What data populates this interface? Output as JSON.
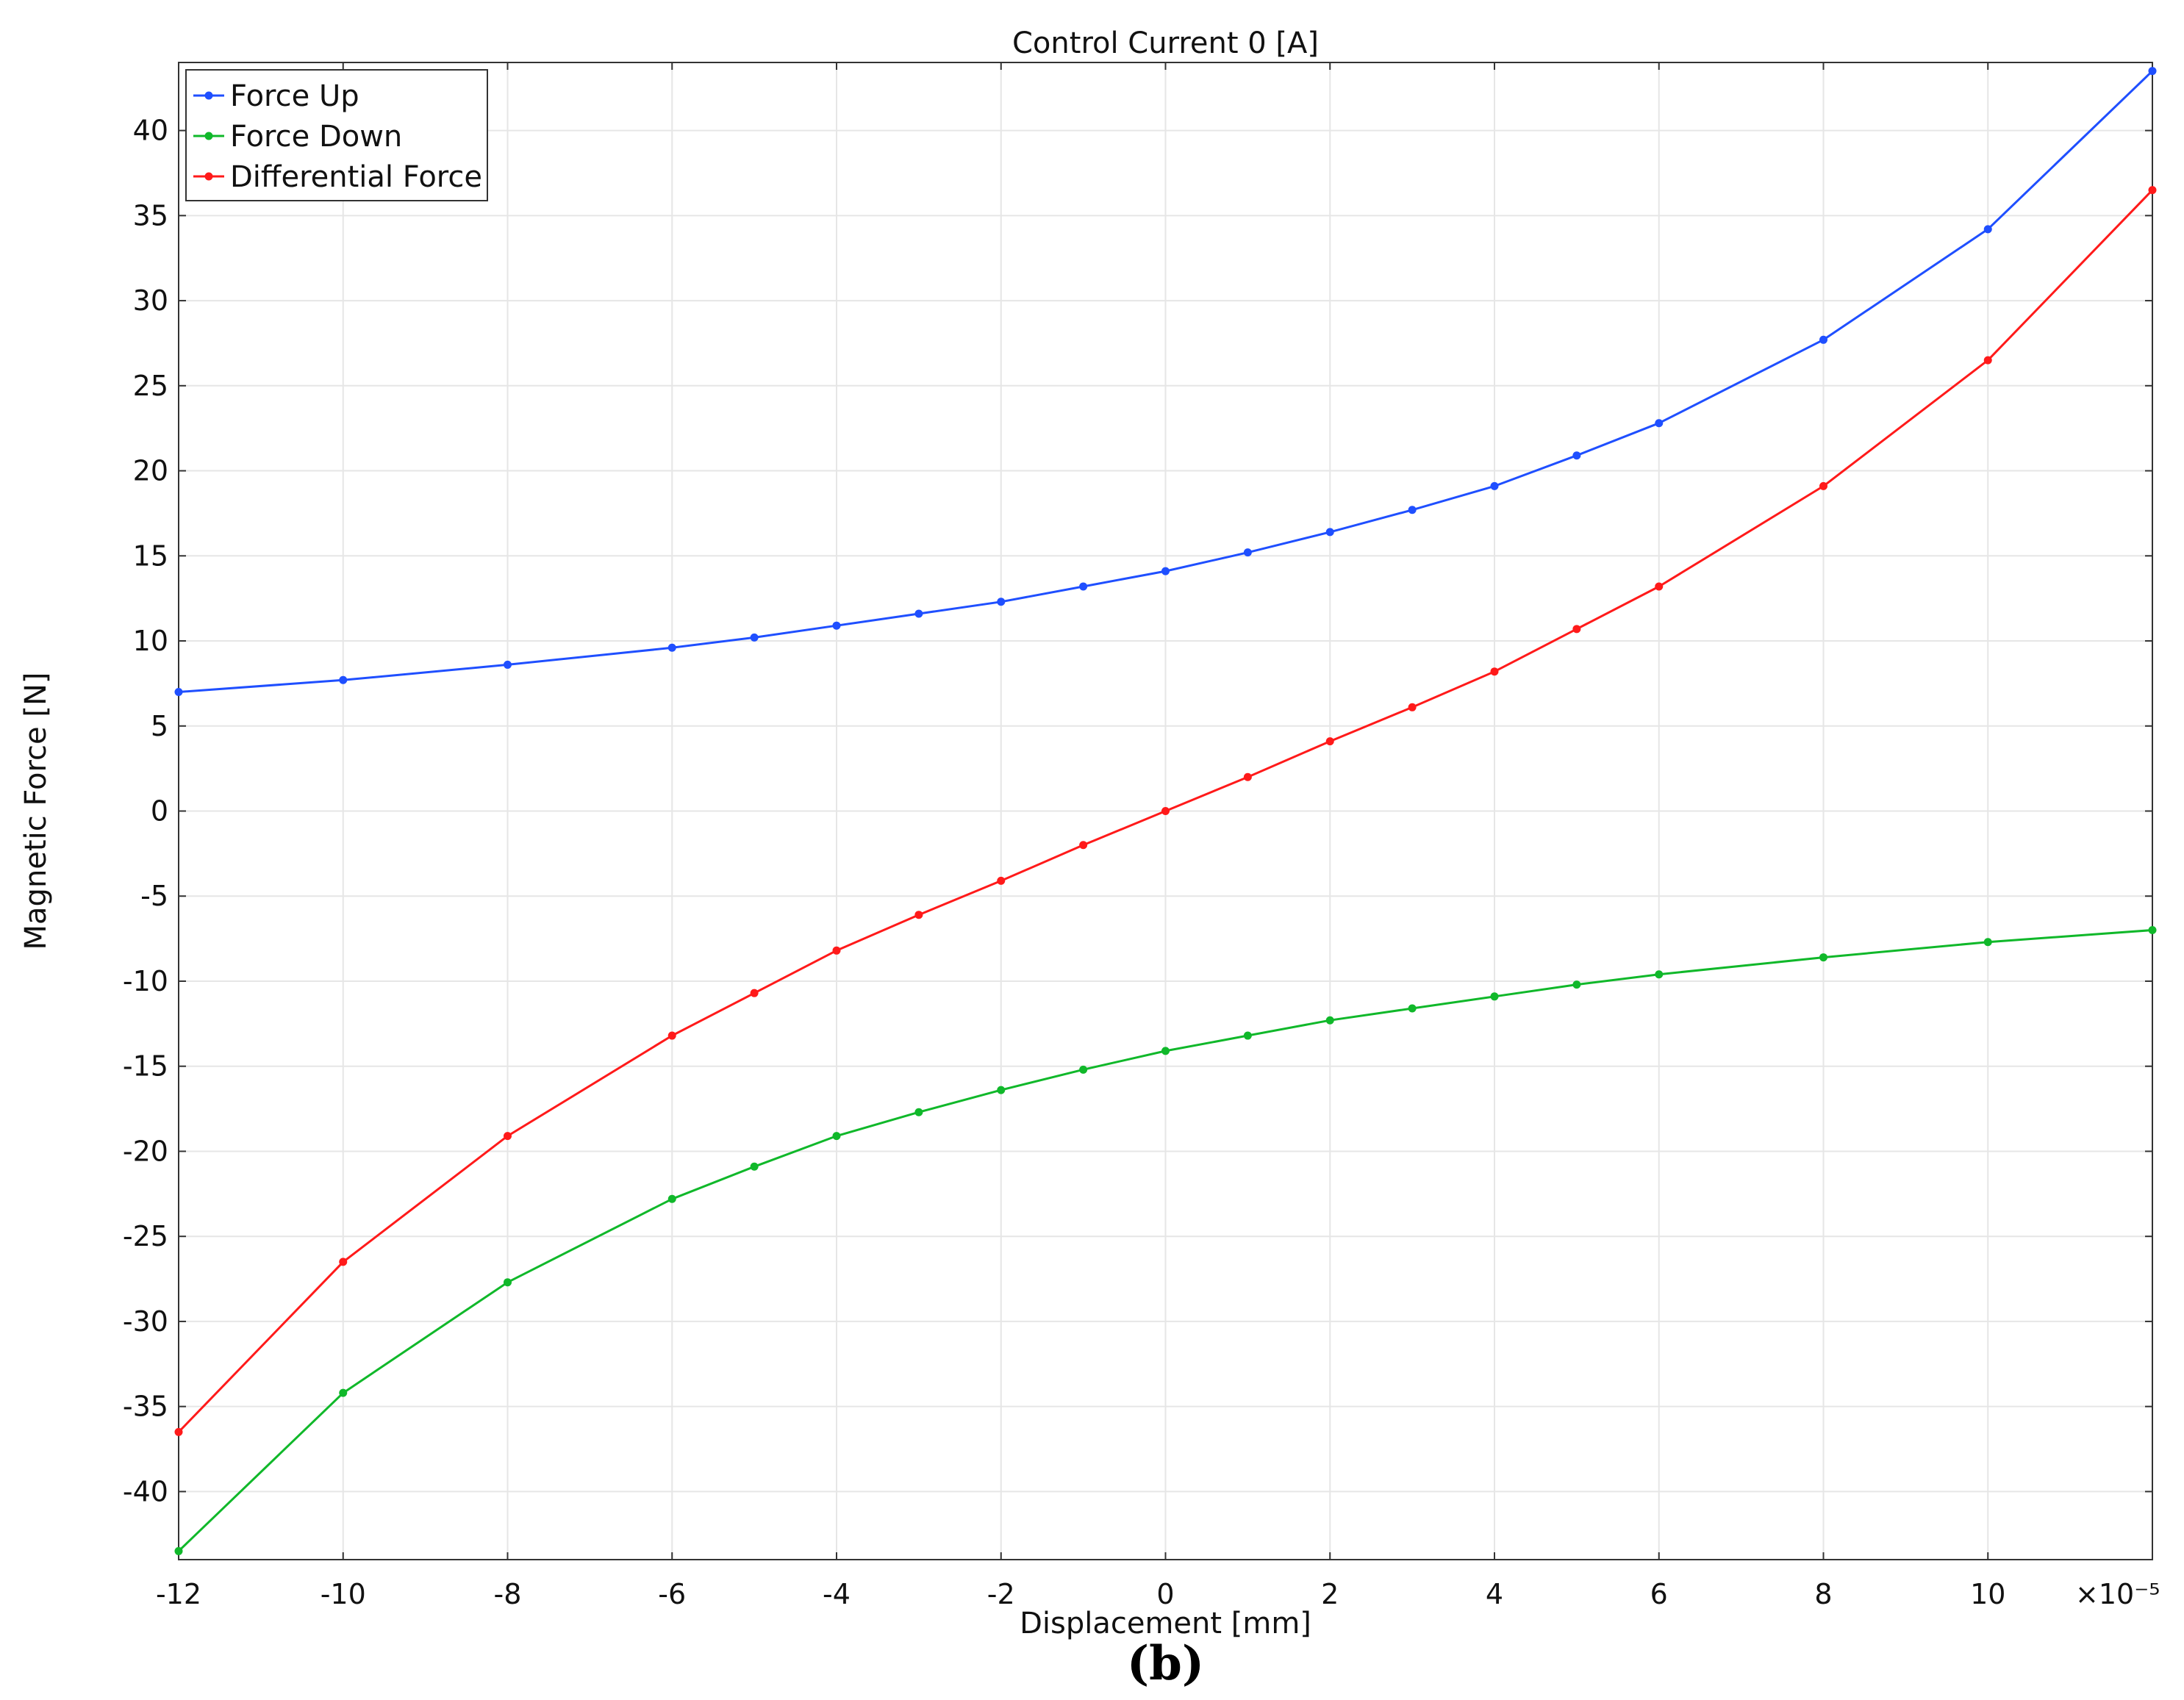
{
  "chart_data": {
    "type": "line",
    "title": "Control Current 0 [A]",
    "xlabel": "Displacement [mm]",
    "ylabel": "Magnetic Force [N]",
    "x_multiplier_label": "×10⁻⁵",
    "caption": "(b)",
    "xlim": [
      -12,
      12
    ],
    "ylim": [
      -44,
      44
    ],
    "x_ticks": [
      -12,
      -10,
      -8,
      -6,
      -4,
      -2,
      0,
      2,
      4,
      6,
      8,
      10
    ],
    "y_ticks": [
      -40,
      -35,
      -30,
      -25,
      -20,
      -15,
      -10,
      -5,
      0,
      5,
      10,
      15,
      20,
      25,
      30,
      35,
      40
    ],
    "grid": true,
    "legend_position": "top-left",
    "x": [
      -12,
      -10,
      -8,
      -6,
      -5,
      -4,
      -3,
      -2,
      -1,
      0,
      1,
      2,
      3,
      4,
      5,
      6,
      8,
      10,
      12
    ],
    "series": [
      {
        "name": "Force Up",
        "color": "#1f4fff",
        "values": [
          7.0,
          7.7,
          8.6,
          9.6,
          10.2,
          10.9,
          11.6,
          12.3,
          13.2,
          14.1,
          15.2,
          16.4,
          17.7,
          19.1,
          20.9,
          22.8,
          27.7,
          34.2,
          43.5
        ]
      },
      {
        "name": "Force Down",
        "color": "#10b82a",
        "values": [
          -43.5,
          -34.2,
          -27.7,
          -22.8,
          -20.9,
          -19.1,
          -17.7,
          -16.4,
          -15.2,
          -14.1,
          -13.2,
          -12.3,
          -11.6,
          -10.9,
          -10.2,
          -9.6,
          -8.6,
          -7.7,
          -7.0
        ]
      },
      {
        "name": "Differential Force",
        "color": "#ff1a1a",
        "values": [
          -36.5,
          -26.5,
          -19.1,
          -13.2,
          -10.7,
          -8.2,
          -6.1,
          -4.1,
          -2.0,
          0.0,
          2.0,
          4.1,
          6.1,
          8.2,
          10.7,
          13.2,
          19.1,
          26.5,
          36.5
        ]
      }
    ]
  }
}
